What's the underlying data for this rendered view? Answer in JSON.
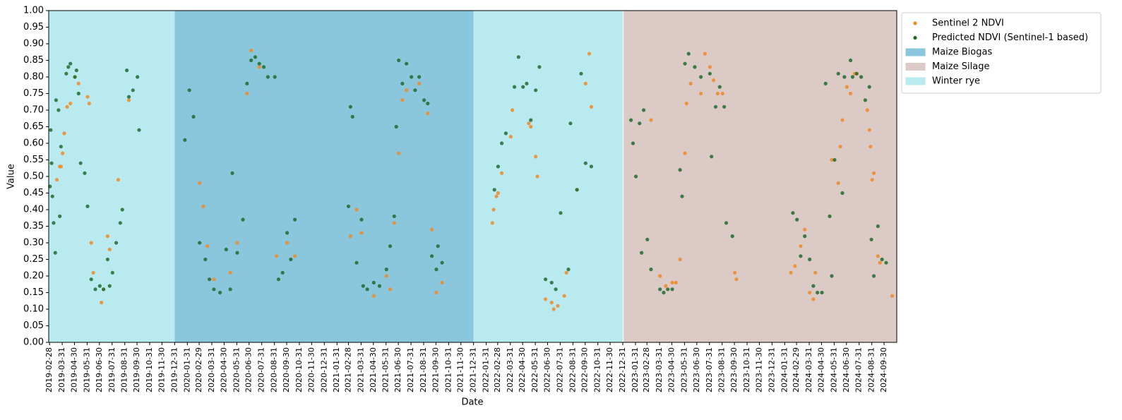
{
  "chart_data": {
    "type": "scatter",
    "xlabel": "Date",
    "ylabel": "Value",
    "xlim": [
      "2019-02-26",
      "2024-10-31"
    ],
    "ylim": [
      0,
      1
    ],
    "xticks": [
      "2019-02-28",
      "2019-03-31",
      "2019-04-30",
      "2019-05-31",
      "2019-06-30",
      "2019-07-31",
      "2019-08-31",
      "2019-09-30",
      "2019-10-31",
      "2019-11-30",
      "2019-12-31",
      "2020-01-31",
      "2020-02-29",
      "2020-03-31",
      "2020-04-30",
      "2020-05-31",
      "2020-06-30",
      "2020-07-31",
      "2020-08-31",
      "2020-09-30",
      "2020-10-31",
      "2020-11-30",
      "2020-12-31",
      "2021-01-31",
      "2021-02-28",
      "2021-03-31",
      "2021-04-30",
      "2021-05-31",
      "2021-06-30",
      "2021-07-31",
      "2021-08-31",
      "2021-09-30",
      "2021-10-31",
      "2021-11-30",
      "2021-12-31",
      "2022-01-31",
      "2022-02-28",
      "2022-03-31",
      "2022-04-30",
      "2022-05-31",
      "2022-06-30",
      "2022-07-31",
      "2022-08-31",
      "2022-09-30",
      "2022-10-31",
      "2022-11-30",
      "2022-12-31",
      "2023-01-31",
      "2023-02-28",
      "2023-03-31",
      "2023-04-30",
      "2023-05-31",
      "2023-06-30",
      "2023-07-31",
      "2023-08-31",
      "2023-09-30",
      "2023-10-31",
      "2023-11-30",
      "2023-12-31",
      "2024-01-31",
      "2024-02-29",
      "2024-03-31",
      "2024-04-30",
      "2024-05-31",
      "2024-06-30",
      "2024-07-31",
      "2024-08-31",
      "2024-09-30"
    ],
    "yticks": [
      {
        "value": 0,
        "label": "0.00"
      },
      {
        "value": 0.05,
        "label": "0.05"
      },
      {
        "value": 0.1,
        "label": "0.10"
      },
      {
        "value": 0.15,
        "label": "0.15"
      },
      {
        "value": 0.2,
        "label": "0.20"
      },
      {
        "value": 0.25,
        "label": "0.25"
      },
      {
        "value": 0.3,
        "label": "0.30"
      },
      {
        "value": 0.35,
        "label": "0.35"
      },
      {
        "value": 0.4,
        "label": "0.40"
      },
      {
        "value": 0.45,
        "label": "0.45"
      },
      {
        "value": 0.5,
        "label": "0.50"
      },
      {
        "value": 0.55,
        "label": "0.55"
      },
      {
        "value": 0.6,
        "label": "0.60"
      },
      {
        "value": 0.65,
        "label": "0.65"
      },
      {
        "value": 0.7,
        "label": "0.70"
      },
      {
        "value": 0.75,
        "label": "0.75"
      },
      {
        "value": 0.8,
        "label": "0.80"
      },
      {
        "value": 0.85,
        "label": "0.85"
      },
      {
        "value": 0.9,
        "label": "0.90"
      },
      {
        "value": 0.95,
        "label": "0.95"
      },
      {
        "value": 1,
        "label": "1.00"
      }
    ],
    "legend_position": "outside-upper-right",
    "series": [
      {
        "name": "Sentinel 2 NDVI",
        "color": "#f08a24",
        "x": [
          "2019-03-18",
          "2019-03-25",
          "2019-03-28",
          "2019-04-01",
          "2019-04-05",
          "2019-04-12",
          "2019-04-20",
          "2019-05-01",
          "2019-05-10",
          "2019-06-01",
          "2019-06-05",
          "2019-06-10",
          "2019-06-15",
          "2019-07-05",
          "2019-07-10",
          "2019-07-20",
          "2019-07-25",
          "2019-08-15",
          "2019-09-10",
          "2020-03-01",
          "2020-03-10",
          "2020-03-20",
          "2020-04-05",
          "2020-05-15",
          "2020-06-01",
          "2020-06-25",
          "2020-07-05",
          "2020-07-25",
          "2020-09-05",
          "2020-10-01",
          "2020-10-20",
          "2021-03-05",
          "2021-03-20",
          "2021-04-01",
          "2021-05-01",
          "2021-06-01",
          "2021-06-10",
          "2021-06-20",
          "2021-07-01",
          "2021-07-10",
          "2021-07-20",
          "2021-08-20",
          "2021-09-10",
          "2021-09-20",
          "2021-10-01",
          "2021-10-15",
          "2022-02-15",
          "2022-02-18",
          "2022-02-25",
          "2022-03-01",
          "2022-03-10",
          "2022-04-01",
          "2022-04-05",
          "2022-05-15",
          "2022-05-20",
          "2022-06-01",
          "2022-06-05",
          "2022-06-25",
          "2022-07-10",
          "2022-07-15",
          "2022-07-25",
          "2022-08-10",
          "2022-08-15",
          "2022-09-10",
          "2022-10-01",
          "2022-10-10",
          "2022-10-15",
          "2023-03-10",
          "2023-04-01",
          "2023-04-15",
          "2023-05-01",
          "2023-05-10",
          "2023-05-20",
          "2023-06-01",
          "2023-06-05",
          "2023-06-15",
          "2023-07-10",
          "2023-07-20",
          "2023-08-01",
          "2023-08-10",
          "2023-08-20",
          "2023-09-01",
          "2023-10-01",
          "2023-10-05",
          "2024-02-15",
          "2024-02-25",
          "2024-03-10",
          "2024-03-20",
          "2024-04-01",
          "2024-04-10",
          "2024-04-15",
          "2024-05-25",
          "2024-06-10",
          "2024-06-15",
          "2024-06-20",
          "2024-07-01",
          "2024-07-10",
          "2024-07-20",
          "2024-07-25",
          "2024-08-20",
          "2024-08-25",
          "2024-08-28",
          "2024-09-01",
          "2024-09-05",
          "2024-09-15",
          "2024-09-20",
          "2024-10-20"
        ],
        "values": [
          0.49,
          0.53,
          0.53,
          0.57,
          0.63,
          0.71,
          0.72,
          0.8,
          0.78,
          0.74,
          0.72,
          0.3,
          0.21,
          0.12,
          0.16,
          0.32,
          0.28,
          0.49,
          0.73,
          0.48,
          0.41,
          0.29,
          0.19,
          0.21,
          0.3,
          0.75,
          0.88,
          0.83,
          0.26,
          0.3,
          0.26,
          0.32,
          0.4,
          0.33,
          0.14,
          0.2,
          0.16,
          0.36,
          0.57,
          0.73,
          0.76,
          0.78,
          0.69,
          0.34,
          0.15,
          0.18,
          0.36,
          0.4,
          0.44,
          0.45,
          0.51,
          0.62,
          0.7,
          0.66,
          0.65,
          0.56,
          0.5,
          0.13,
          0.12,
          0.1,
          0.11,
          0.14,
          0.21,
          0.46,
          0.78,
          0.87,
          0.71,
          0.67,
          0.2,
          0.17,
          0.18,
          0.18,
          0.25,
          0.57,
          0.72,
          0.78,
          0.75,
          0.87,
          0.83,
          0.79,
          0.75,
          0.75,
          0.21,
          0.19,
          0.21,
          0.23,
          0.29,
          0.34,
          0.15,
          0.13,
          0.21,
          0.55,
          0.48,
          0.59,
          0.67,
          0.77,
          0.75,
          0.81,
          0.81,
          0.7,
          0.64,
          0.59,
          0.49,
          0.51,
          0.26,
          0.24,
          0.14
        ]
      },
      {
        "name": "Predicted NDVI (Sentinel-1 based)",
        "color": "#1e6b2e",
        "x": [
          "2019-03-01",
          "2019-03-03",
          "2019-03-05",
          "2019-03-07",
          "2019-03-10",
          "2019-03-14",
          "2019-03-16",
          "2019-03-22",
          "2019-03-25",
          "2019-03-28",
          "2019-04-10",
          "2019-04-15",
          "2019-04-20",
          "2019-05-01",
          "2019-05-05",
          "2019-05-10",
          "2019-05-15",
          "2019-05-25",
          "2019-06-01",
          "2019-06-10",
          "2019-06-20",
          "2019-07-01",
          "2019-07-10",
          "2019-07-20",
          "2019-07-25",
          "2019-08-01",
          "2019-08-10",
          "2019-08-20",
          "2019-08-25",
          "2019-09-05",
          "2019-09-10",
          "2019-09-20",
          "2019-10-01",
          "2019-10-05",
          "2020-01-25",
          "2020-02-05",
          "2020-02-15",
          "2020-03-01",
          "2020-03-15",
          "2020-03-25",
          "2020-04-05",
          "2020-04-20",
          "2020-05-05",
          "2020-05-15",
          "2020-05-20",
          "2020-06-01",
          "2020-06-15",
          "2020-06-25",
          "2020-07-05",
          "2020-07-15",
          "2020-07-25",
          "2020-08-05",
          "2020-08-15",
          "2020-09-01",
          "2020-09-10",
          "2020-09-20",
          "2020-10-01",
          "2020-10-10",
          "2020-10-20",
          "2021-02-28",
          "2021-03-05",
          "2021-03-10",
          "2021-03-20",
          "2021-04-01",
          "2021-04-05",
          "2021-04-15",
          "2021-05-01",
          "2021-05-15",
          "2021-06-01",
          "2021-06-10",
          "2021-06-20",
          "2021-06-25",
          "2021-07-01",
          "2021-07-10",
          "2021-07-20",
          "2021-08-01",
          "2021-08-10",
          "2021-08-20",
          "2021-09-01",
          "2021-09-10",
          "2021-09-20",
          "2021-10-01",
          "2021-10-05",
          "2021-10-15",
          "2022-02-20",
          "2022-03-01",
          "2022-03-10",
          "2022-03-20",
          "2022-04-10",
          "2022-04-20",
          "2022-05-01",
          "2022-05-10",
          "2022-05-20",
          "2022-06-01",
          "2022-06-10",
          "2022-06-25",
          "2022-07-10",
          "2022-07-20",
          "2022-08-01",
          "2022-08-20",
          "2022-08-25",
          "2022-09-10",
          "2022-09-20",
          "2022-10-01",
          "2022-10-15",
          "2023-01-20",
          "2023-01-25",
          "2023-02-01",
          "2023-02-10",
          "2023-02-15",
          "2023-02-20",
          "2023-03-01",
          "2023-03-10",
          "2023-04-01",
          "2023-04-10",
          "2023-04-20",
          "2023-05-01",
          "2023-05-20",
          "2023-05-25",
          "2023-06-01",
          "2023-06-10",
          "2023-06-25",
          "2023-07-10",
          "2023-08-01",
          "2023-08-05",
          "2023-08-15",
          "2023-08-25",
          "2023-09-05",
          "2023-09-10",
          "2023-09-25",
          "2024-02-20",
          "2024-03-01",
          "2024-03-10",
          "2024-03-20",
          "2024-04-01",
          "2024-04-10",
          "2024-04-20",
          "2024-05-01",
          "2024-05-10",
          "2024-05-20",
          "2024-05-25",
          "2024-06-01",
          "2024-06-10",
          "2024-06-20",
          "2024-06-25",
          "2024-07-10",
          "2024-07-15",
          "2024-07-25",
          "2024-08-05",
          "2024-08-15",
          "2024-08-25",
          "2024-08-30",
          "2024-09-05",
          "2024-09-15",
          "2024-09-25",
          "2024-10-05"
        ],
        "values": [
          0.47,
          0.64,
          0.54,
          0.44,
          0.36,
          0.27,
          0.73,
          0.7,
          0.38,
          0.59,
          0.81,
          0.83,
          0.84,
          0.8,
          0.82,
          0.75,
          0.54,
          0.51,
          0.41,
          0.19,
          0.16,
          0.17,
          0.16,
          0.25,
          0.17,
          0.21,
          0.3,
          0.36,
          0.4,
          0.82,
          0.74,
          0.76,
          0.8,
          0.64,
          0.61,
          0.76,
          0.68,
          0.3,
          0.25,
          0.19,
          0.16,
          0.15,
          0.28,
          0.16,
          0.51,
          0.27,
          0.37,
          0.78,
          0.85,
          0.86,
          0.84,
          0.83,
          0.8,
          0.8,
          0.19,
          0.21,
          0.33,
          0.25,
          0.37,
          0.41,
          0.71,
          0.68,
          0.24,
          0.37,
          0.17,
          0.16,
          0.18,
          0.17,
          0.22,
          0.29,
          0.38,
          0.65,
          0.85,
          0.78,
          0.84,
          0.8,
          0.76,
          0.8,
          0.73,
          0.72,
          0.26,
          0.22,
          0.29,
          0.24,
          0.46,
          0.53,
          0.6,
          0.63,
          0.77,
          0.86,
          0.77,
          0.78,
          0.67,
          0.76,
          0.83,
          0.19,
          0.18,
          0.16,
          0.39,
          0.22,
          0.66,
          0.46,
          0.81,
          0.54,
          0.53,
          0.67,
          0.6,
          0.5,
          0.66,
          0.27,
          0.7,
          0.31,
          0.22,
          0.16,
          0.15,
          0.16,
          0.16,
          0.52,
          0.44,
          0.84,
          0.87,
          0.83,
          0.8,
          0.81,
          0.56,
          0.71,
          0.77,
          0.71,
          0.36,
          0.32,
          0.39,
          0.37,
          0.26,
          0.32,
          0.25,
          0.17,
          0.15,
          0.15,
          0.78,
          0.38,
          0.2,
          0.55,
          0.81,
          0.45,
          0.8,
          0.85,
          0.8,
          0.81,
          0.8,
          0.73,
          0.77,
          0.31,
          0.2,
          0.35,
          0.25,
          0.24
        ]
      }
    ],
    "spans": [
      {
        "name": "Maize Biogas",
        "color": "#8ac6dc",
        "ranges": [
          {
            "start": "2019-12-31",
            "end": "2021-12-31"
          }
        ]
      },
      {
        "name": "Maize Silage",
        "color": "#dbcac6",
        "ranges": [
          {
            "start": "2023-01-02",
            "end": "2024-10-31"
          }
        ]
      },
      {
        "name": "Winter rye",
        "color": "#b9eaef",
        "ranges": [
          {
            "start": "2019-02-26",
            "end": "2019-12-31"
          },
          {
            "start": "2021-12-31",
            "end": "2022-12-31"
          }
        ]
      }
    ]
  }
}
